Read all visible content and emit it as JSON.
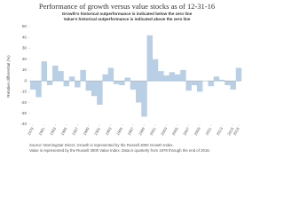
{
  "chart_data": {
    "type": "bar",
    "title": "Performance of growth versus value stocks as of 12-31-16",
    "subtitle": [
      "Growth's historical outperformance is indicated below the zero line",
      "Value's historical outperformance is indicated above the zero line"
    ],
    "y_label": "Relative differential (%)",
    "source": [
      "Source: Morningstar Direct. Growth is represented by the Russell 3000 Growth Index.",
      "Value is represented by the Russell 3000 Value Index. Data is quarterly from 1979 through the end of 2016."
    ],
    "color": "#b8cfe6",
    "x": [
      1979,
      1980,
      1981,
      1982,
      1983,
      1984,
      1985,
      1986,
      1987,
      1988,
      1989,
      1990,
      1991,
      1992,
      1993,
      1994,
      1995,
      1996,
      1997,
      1998,
      1999,
      2000,
      2001,
      2002,
      2003,
      2004,
      2005,
      2006,
      2007,
      2008,
      2009,
      2010,
      2011,
      2012,
      2013,
      2014,
      2015,
      2016
    ],
    "values": [
      -8,
      -15,
      18,
      -4,
      14,
      9,
      -5,
      4,
      -6,
      10,
      -9,
      -14,
      -22,
      6,
      12,
      -3,
      -4,
      3,
      -8,
      -20,
      -33,
      42,
      20,
      9,
      5,
      8,
      6,
      10,
      -9,
      -4,
      -10,
      0,
      -5,
      4,
      1,
      -4,
      -8,
      12
    ],
    "xlim": [
      1978.5,
      2016.5
    ],
    "xticks": [
      1979,
      1981,
      1983,
      1985,
      1987,
      1989,
      1991,
      1993,
      1995,
      1997,
      1999,
      2001,
      2003,
      2005,
      2007,
      2009,
      2011,
      2013,
      2015,
      2016
    ],
    "ylim": [
      -40,
      50
    ],
    "yticks": [
      -40,
      -30,
      -20,
      -10,
      0,
      10,
      20,
      30,
      40,
      50
    ]
  }
}
